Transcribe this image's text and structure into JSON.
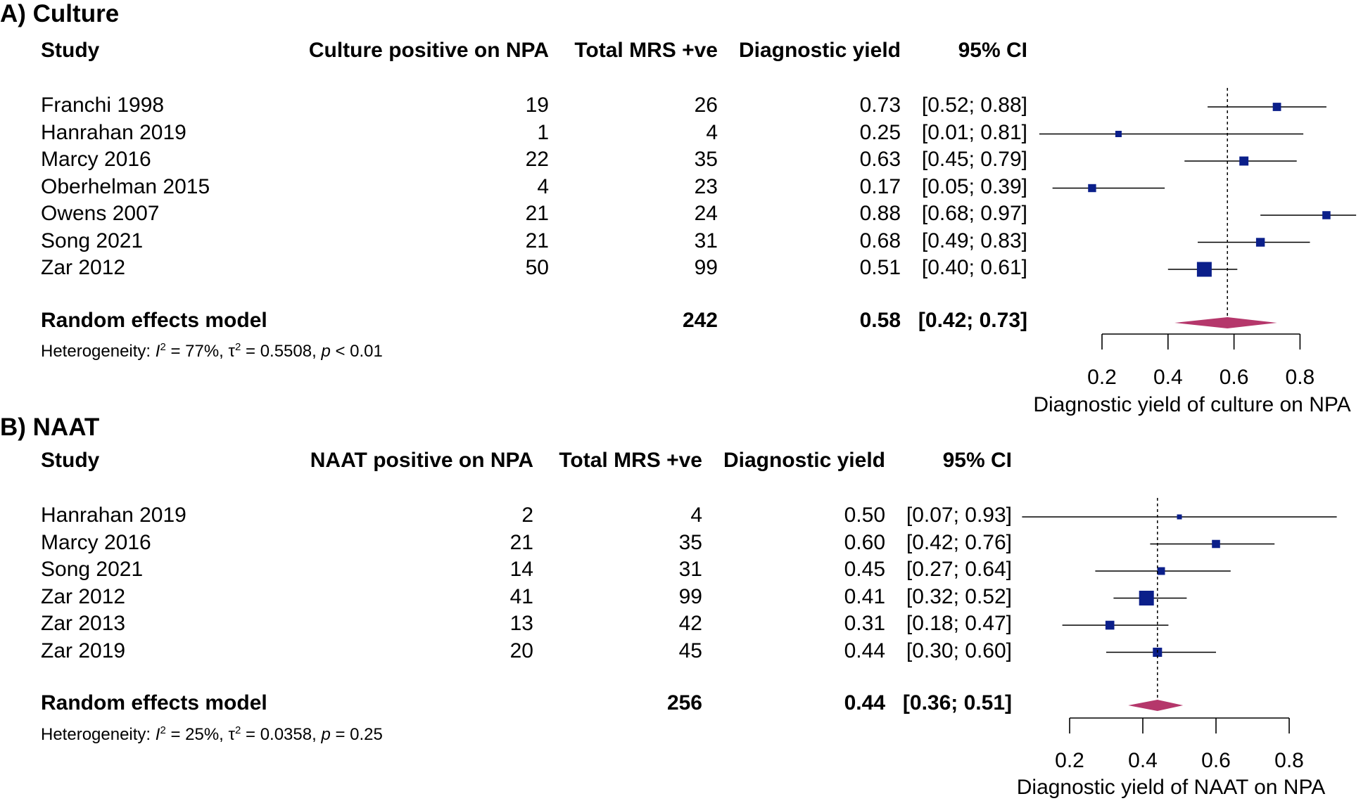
{
  "chart_data": [
    {
      "type": "forest",
      "panel_title": "A) Culture",
      "headers": {
        "study": "Study",
        "events": "Culture positive on NPA",
        "total": "Total MRS +ve",
        "estimate": "Diagnostic yield",
        "ci": "95% CI"
      },
      "studies": [
        {
          "study": "Franchi 1998",
          "events": "19",
          "total": "26",
          "estimate_label": "0.73",
          "ci_label": "[0.52; 0.88]",
          "estimate": 0.73,
          "ci_low": 0.52,
          "ci_high": 0.88
        },
        {
          "study": "Hanrahan 2019",
          "events": "1",
          "total": "4",
          "estimate_label": "0.25",
          "ci_label": "[0.01; 0.81]",
          "estimate": 0.25,
          "ci_low": 0.01,
          "ci_high": 0.81
        },
        {
          "study": "Marcy 2016",
          "events": "22",
          "total": "35",
          "estimate_label": "0.63",
          "ci_label": "[0.45; 0.79]",
          "estimate": 0.63,
          "ci_low": 0.45,
          "ci_high": 0.79
        },
        {
          "study": "Oberhelman 2015",
          "events": "4",
          "total": "23",
          "estimate_label": "0.17",
          "ci_label": "[0.05; 0.39]",
          "estimate": 0.17,
          "ci_low": 0.05,
          "ci_high": 0.39
        },
        {
          "study": "Owens 2007",
          "events": "21",
          "total": "24",
          "estimate_label": "0.88",
          "ci_label": "[0.68; 0.97]",
          "estimate": 0.88,
          "ci_low": 0.68,
          "ci_high": 0.97
        },
        {
          "study": "Song 2021",
          "events": "21",
          "total": "31",
          "estimate_label": "0.68",
          "ci_label": "[0.49; 0.83]",
          "estimate": 0.68,
          "ci_low": 0.49,
          "ci_high": 0.83
        },
        {
          "study": "Zar 2012",
          "events": "50",
          "total": "99",
          "estimate_label": "0.51",
          "ci_label": "[0.40; 0.61]",
          "estimate": 0.51,
          "ci_low": 0.4,
          "ci_high": 0.61
        }
      ],
      "summary": {
        "label": "Random effects model",
        "total": "242",
        "estimate_label": "0.58",
        "ci_label": "[0.42; 0.73]",
        "estimate": 0.58,
        "ci_low": 0.42,
        "ci_high": 0.73
      },
      "heterogeneity": {
        "prefix": "Heterogeneity: ",
        "i_symbol": "I",
        "i_sup": "2",
        "i_value": " = 77%, ",
        "tau_symbol": "τ",
        "tau_sup": "2",
        "tau_value": " = 0.5508, ",
        "p_symbol": "p",
        "p_value": " < 0.01"
      },
      "xaxis": {
        "label": "Diagnostic yield of culture on NPA",
        "ticks": [
          0.2,
          0.4,
          0.6,
          0.8
        ],
        "tick_labels": [
          "0.2",
          "0.4",
          "0.6",
          "0.8"
        ],
        "axis_min": 0.2,
        "axis_max": 0.8
      },
      "colors": {
        "square": "#0b1f8a",
        "diamond": "#b5376b",
        "line": "#000000"
      }
    },
    {
      "type": "forest",
      "panel_title": "B) NAAT",
      "headers": {
        "study": "Study",
        "events": "NAAT positive on NPA",
        "total": "Total MRS +ve",
        "estimate": "Diagnostic yield",
        "ci": "95% CI"
      },
      "studies": [
        {
          "study": "Hanrahan 2019",
          "events": "2",
          "total": "4",
          "estimate_label": "0.50",
          "ci_label": "[0.07; 0.93]",
          "estimate": 0.5,
          "ci_low": 0.07,
          "ci_high": 0.93
        },
        {
          "study": "Marcy 2016",
          "events": "21",
          "total": "35",
          "estimate_label": "0.60",
          "ci_label": "[0.42; 0.76]",
          "estimate": 0.6,
          "ci_low": 0.42,
          "ci_high": 0.76
        },
        {
          "study": "Song 2021",
          "events": "14",
          "total": "31",
          "estimate_label": "0.45",
          "ci_label": "[0.27; 0.64]",
          "estimate": 0.45,
          "ci_low": 0.27,
          "ci_high": 0.64
        },
        {
          "study": "Zar 2012",
          "events": "41",
          "total": "99",
          "estimate_label": "0.41",
          "ci_label": "[0.32; 0.52]",
          "estimate": 0.41,
          "ci_low": 0.32,
          "ci_high": 0.52
        },
        {
          "study": "Zar 2013",
          "events": "13",
          "total": "42",
          "estimate_label": "0.31",
          "ci_label": "[0.18; 0.47]",
          "estimate": 0.31,
          "ci_low": 0.18,
          "ci_high": 0.47
        },
        {
          "study": "Zar 2019",
          "events": "20",
          "total": "45",
          "estimate_label": "0.44",
          "ci_label": "[0.30; 0.60]",
          "estimate": 0.44,
          "ci_low": 0.3,
          "ci_high": 0.6
        }
      ],
      "summary": {
        "label": "Random effects model",
        "total": "256",
        "estimate_label": "0.44",
        "ci_label": "[0.36; 0.51]",
        "estimate": 0.44,
        "ci_low": 0.36,
        "ci_high": 0.51
      },
      "heterogeneity": {
        "prefix": "Heterogeneity: ",
        "i_symbol": "I",
        "i_sup": "2",
        "i_value": " = 25%, ",
        "tau_symbol": "τ",
        "tau_sup": "2",
        "tau_value": " = 0.0358, ",
        "p_symbol": "p",
        "p_value": " = 0.25"
      },
      "xaxis": {
        "label": "Diagnostic yield of NAAT on NPA",
        "ticks": [
          0.2,
          0.4,
          0.6,
          0.8
        ],
        "tick_labels": [
          "0.2",
          "0.4",
          "0.6",
          "0.8"
        ],
        "axis_min": 0.2,
        "axis_max": 0.8
      },
      "colors": {
        "square": "#0b1f8a",
        "diamond": "#b5376b",
        "line": "#000000"
      }
    }
  ]
}
